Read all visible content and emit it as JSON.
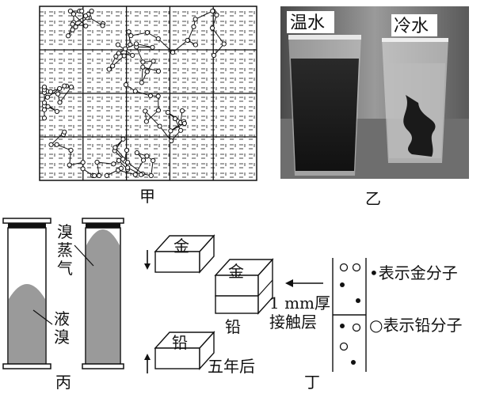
{
  "panels": {
    "jia": {
      "caption": "甲"
    },
    "yi": {
      "caption": "乙",
      "warm_label": "温水",
      "cold_label": "冷水"
    },
    "bing": {
      "caption": "丙",
      "vapor_label_1": "溴",
      "vapor_label_2": "蒸",
      "vapor_label_3": "气",
      "liquid_label_1": "液",
      "liquid_label_2": "溴"
    },
    "ding": {
      "caption": "丁",
      "gold_label": "金",
      "lead_label": "铅",
      "after_label": "五年后",
      "contact_label_1": "1 mm厚",
      "contact_label_2": "接触层",
      "legend_gold": "•表示金分子",
      "legend_lead": "○表示铅分子"
    }
  },
  "colors": {
    "ink": "#111111",
    "liquid": "#9a9a9a",
    "vapor": "#b8b8b8",
    "glass": "#c9c9c9"
  }
}
